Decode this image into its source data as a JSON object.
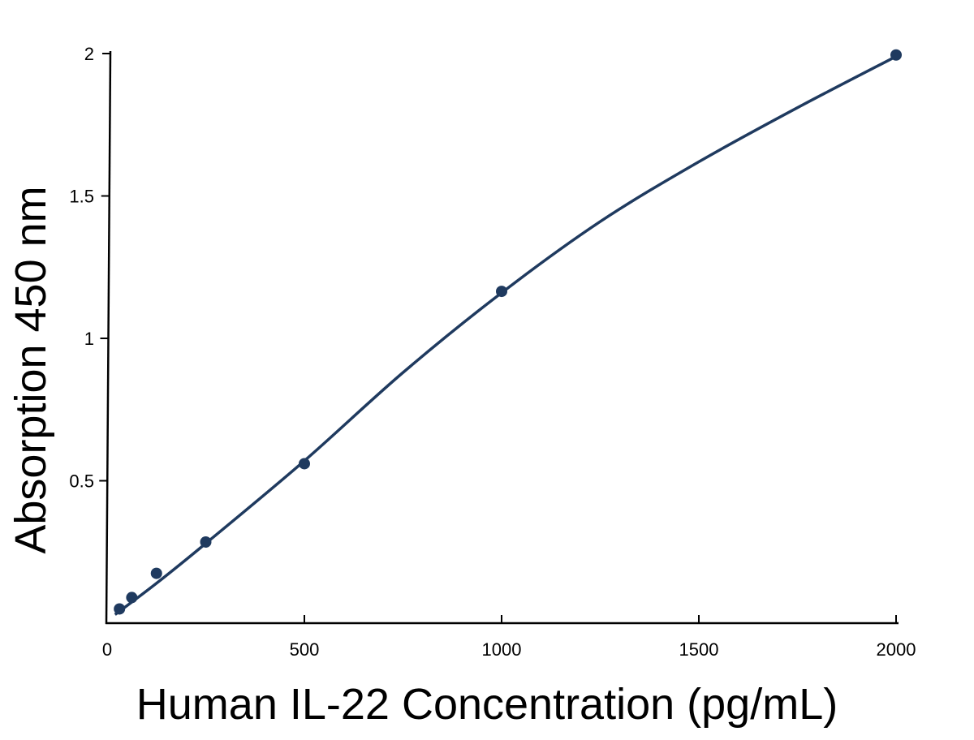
{
  "chart_data": {
    "type": "scatter",
    "xlabel": "Human IL-22 Concentration (pg/mL)",
    "ylabel": "Absorption 450 nm",
    "xlim": [
      0,
      2000
    ],
    "ylim": [
      0,
      2
    ],
    "x_ticks": [
      0,
      500,
      1000,
      1500,
      2000
    ],
    "x_tick_labels": [
      "0",
      "500",
      "1000",
      "1500",
      "2000"
    ],
    "y_ticks": [
      0.5,
      1,
      1.5,
      2
    ],
    "y_tick_labels": [
      "0.5",
      "1",
      "1.5",
      "2"
    ],
    "grid": false,
    "series": [
      {
        "points": [
          {
            "x": 31.25,
            "y": 0.05
          },
          {
            "x": 62.5,
            "y": 0.09
          },
          {
            "x": 125,
            "y": 0.175
          },
          {
            "x": 250,
            "y": 0.285
          },
          {
            "x": 500,
            "y": 0.56
          },
          {
            "x": 1000,
            "y": 1.165
          },
          {
            "x": 2000,
            "y": 1.995
          }
        ],
        "fit_curve": [
          [
            20,
            0.03
          ],
          [
            125,
            0.14
          ],
          [
            250,
            0.28
          ],
          [
            500,
            0.57
          ],
          [
            750,
            0.88
          ],
          [
            1000,
            1.16
          ],
          [
            1250,
            1.41
          ],
          [
            1500,
            1.62
          ],
          [
            1750,
            1.81
          ],
          [
            2000,
            1.99
          ]
        ],
        "color": "#1f3a5f"
      }
    ]
  }
}
